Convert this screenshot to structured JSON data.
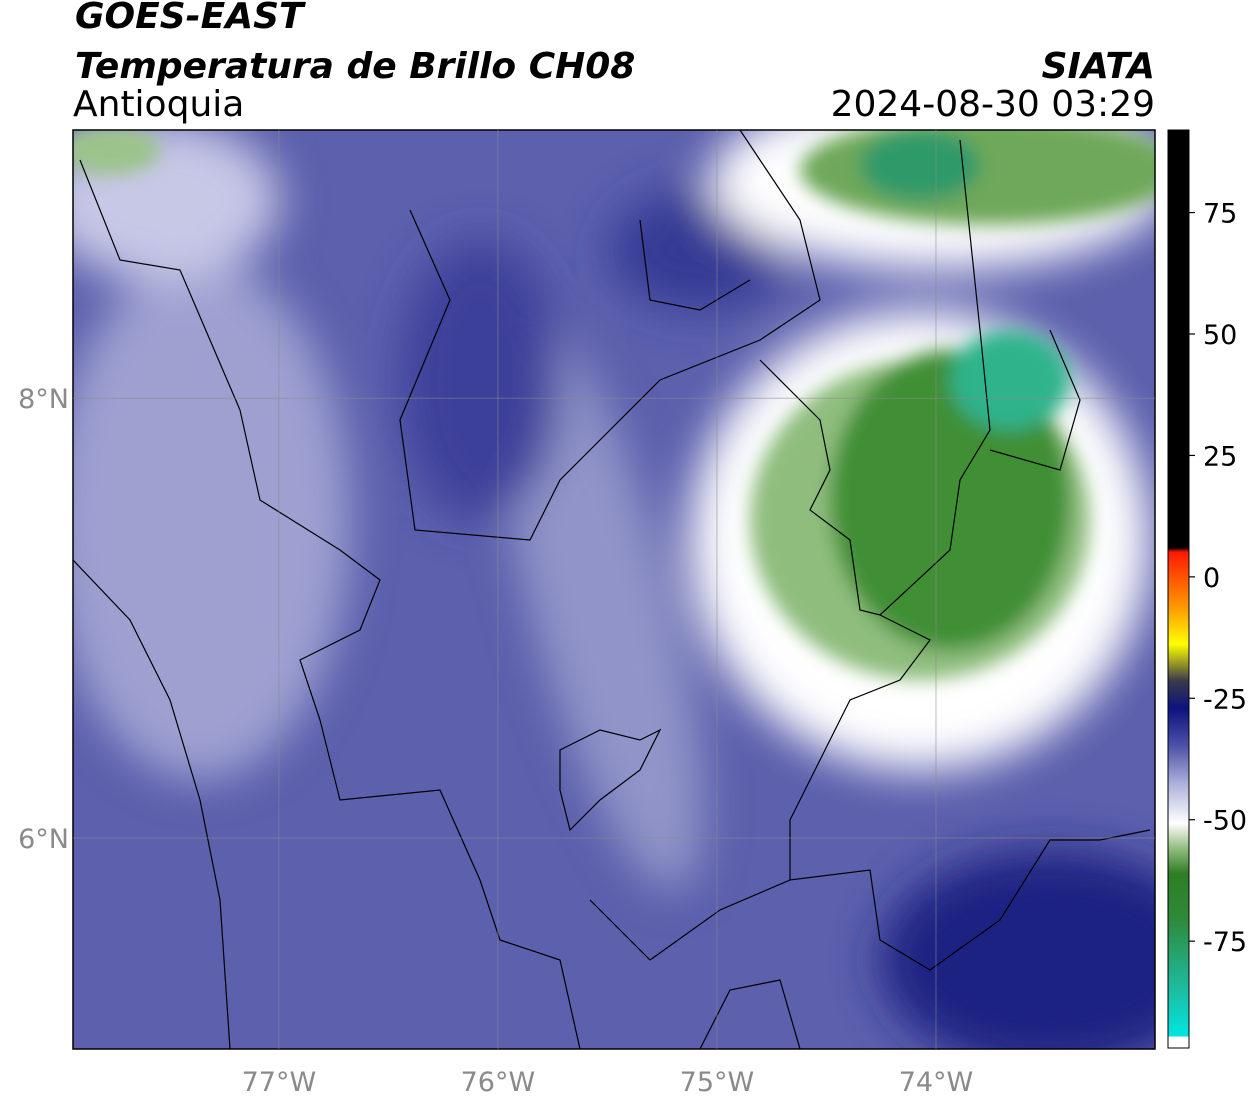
{
  "header": {
    "title": "GOES-EAST",
    "subtitle": "Temperatura de Brillo CH08",
    "region": "Antioquia",
    "source": "SIATA",
    "datetime": "2024-08-30 03:29"
  },
  "map": {
    "xlim": [
      -77.94,
      -73.0
    ],
    "ylim": [
      5.04,
      9.22
    ],
    "xticks": [
      {
        "value": -77,
        "label": "77°W"
      },
      {
        "value": -76,
        "label": "76°W"
      },
      {
        "value": -75,
        "label": "75°W"
      },
      {
        "value": -74,
        "label": "74°W"
      }
    ],
    "yticks": [
      {
        "value": 8,
        "label": "8°N"
      },
      {
        "value": 6,
        "label": "6°N"
      }
    ],
    "grid": true
  },
  "colorbar": {
    "lim": [
      -97,
      92
    ],
    "ticks": [
      75,
      50,
      25,
      0,
      -25,
      -50,
      -75
    ]
  }
}
